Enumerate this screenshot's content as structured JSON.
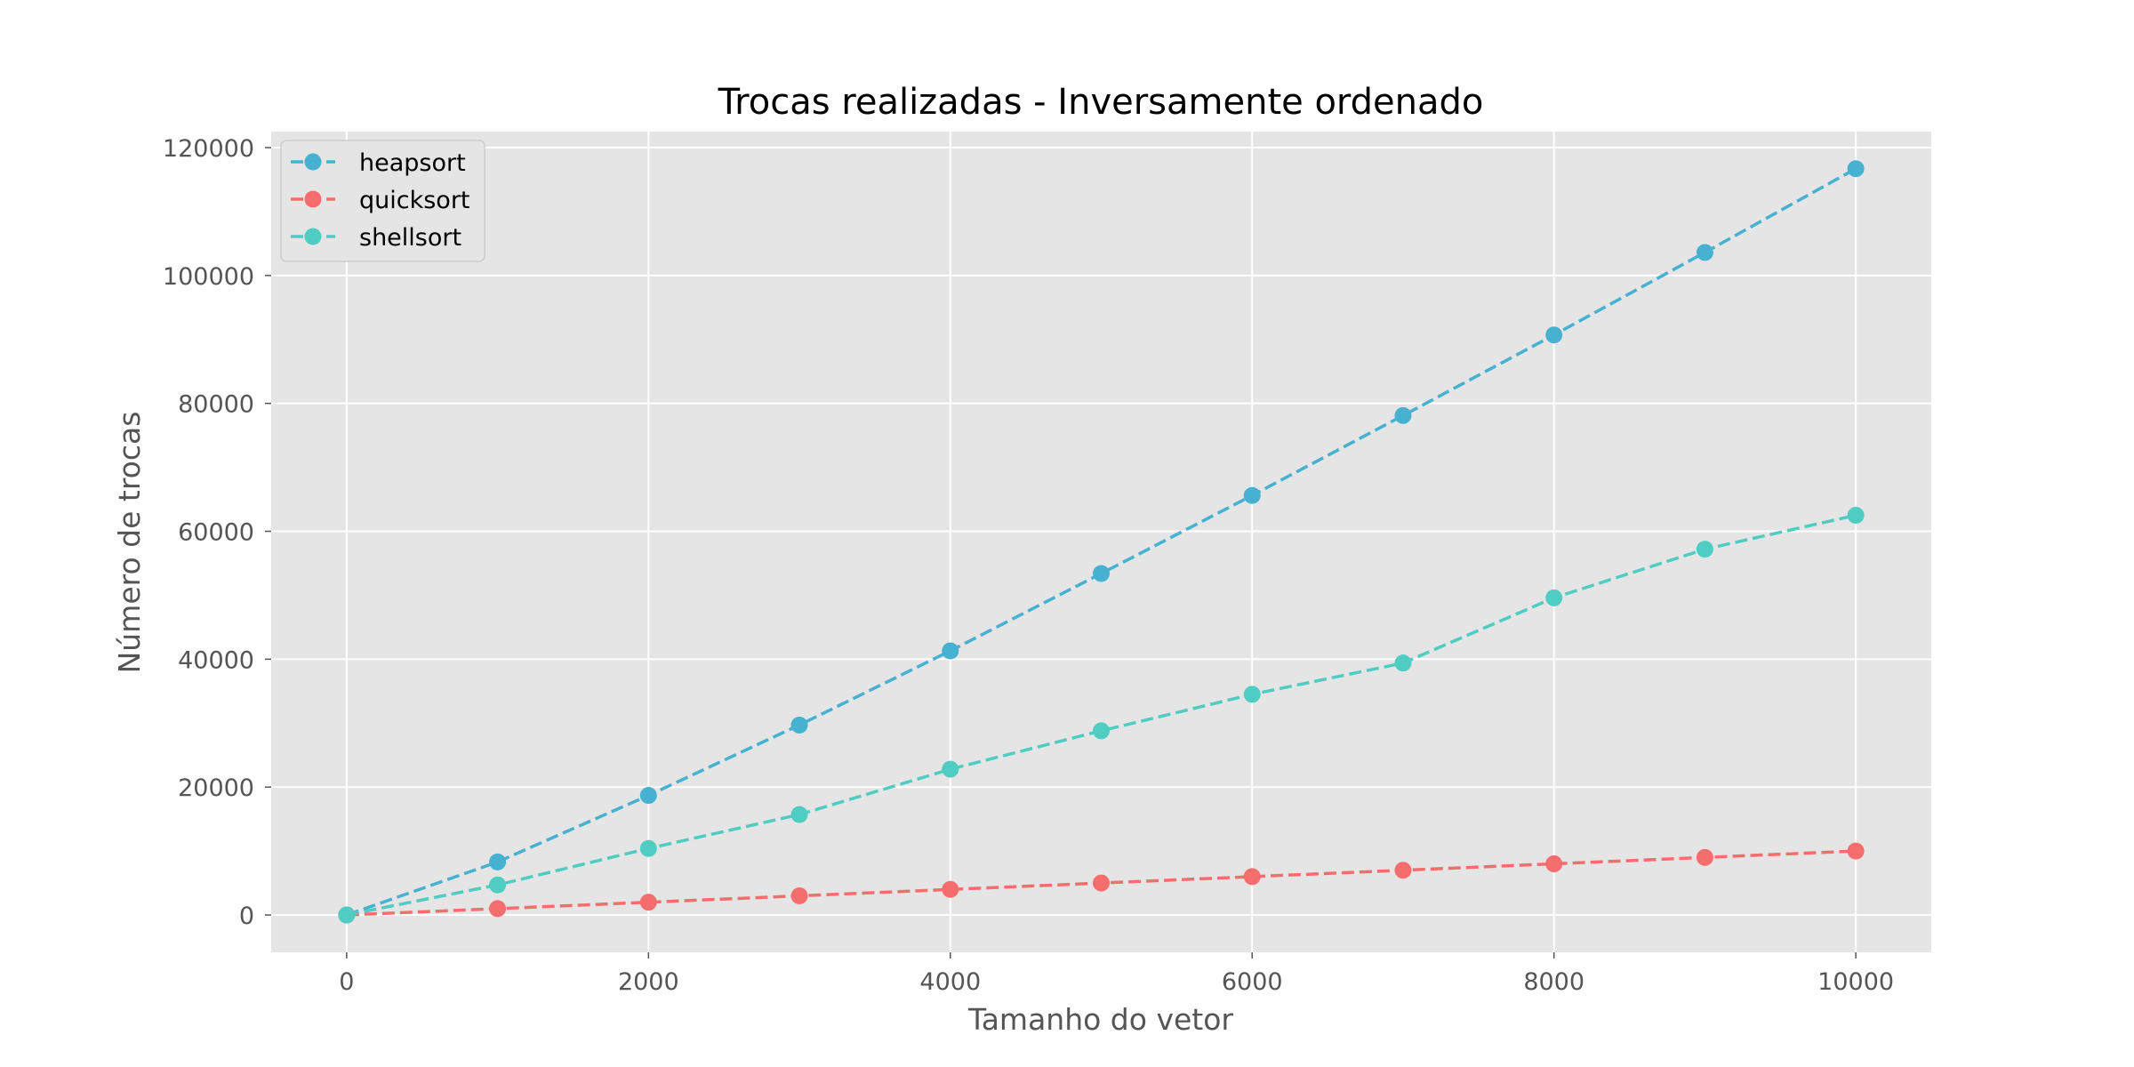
{
  "chart_data": {
    "type": "line",
    "title": "Trocas realizadas - Inversamente ordenado",
    "xlabel": "Tamanho do vetor",
    "ylabel": "Número de trocas",
    "xlim": [
      -500,
      10500
    ],
    "ylim": [
      -5833,
      122500
    ],
    "xticks": [
      0,
      2000,
      4000,
      6000,
      8000,
      10000
    ],
    "yticks": [
      0,
      20000,
      40000,
      60000,
      80000,
      100000,
      120000
    ],
    "grid": true,
    "legend_position": "top-left",
    "x": [
      0,
      1000,
      2000,
      3000,
      4000,
      5000,
      6000,
      7000,
      8000,
      9000,
      10000
    ],
    "series": [
      {
        "name": "heapsort",
        "color": "#46b1d0",
        "line_style": "dashed",
        "marker": "circle",
        "values": [
          0,
          8300,
          18700,
          29700,
          41300,
          53400,
          65600,
          78100,
          90700,
          103600,
          116700
        ]
      },
      {
        "name": "quicksort",
        "color": "#f66d6d",
        "line_style": "dashed",
        "marker": "circle",
        "values": [
          0,
          1000,
          2000,
          3000,
          4000,
          5000,
          6000,
          7000,
          8000,
          9000,
          10000
        ]
      },
      {
        "name": "shellsort",
        "color": "#4fcdc3",
        "line_style": "dashed",
        "marker": "circle",
        "values": [
          0,
          4700,
          10400,
          15700,
          22800,
          28800,
          34500,
          39400,
          49600,
          57200,
          62500
        ]
      }
    ]
  },
  "style": {
    "plot_background": "#e5e5e5",
    "grid_color": "#ffffff",
    "legend_background": "#e5e5e5",
    "legend_border": "#cccccc"
  }
}
